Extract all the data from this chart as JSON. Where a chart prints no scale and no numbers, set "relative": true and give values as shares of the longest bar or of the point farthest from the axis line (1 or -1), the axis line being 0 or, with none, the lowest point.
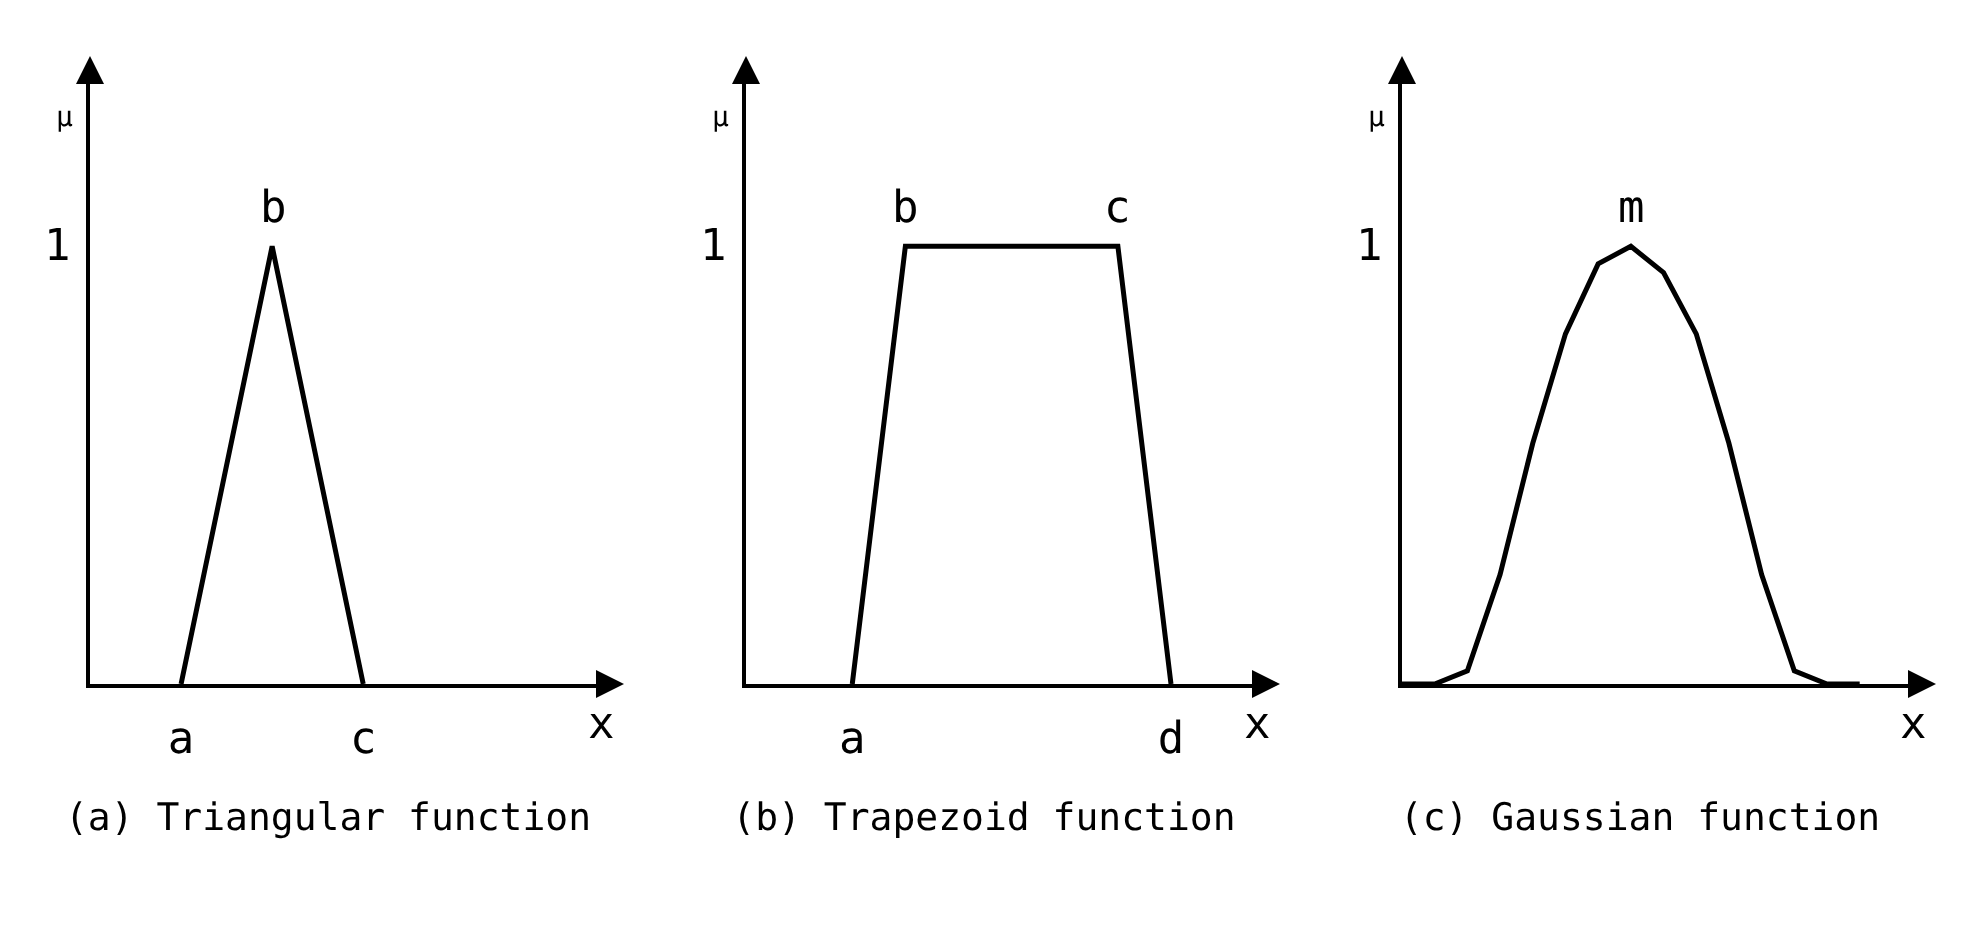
{
  "chart_data": [
    {
      "type": "line",
      "title": "(a) Triangular function",
      "xlabel": "x",
      "ylabel": "μ",
      "relative": true,
      "categories": [
        null,
        "a",
        null,
        "c",
        null,
        null
      ],
      "series": [
        {
          "color": "#000000",
          "values": [
            null,
            0,
            1,
            0,
            null,
            null
          ]
        }
      ],
      "annotations": [
        {
          "text": "b",
          "y": 1
        },
        "1"
      ],
      "grid": false,
      "marker": "none",
      "line_style": "solid"
    },
    {
      "type": "line",
      "title": "(b) Trapezoid function",
      "xlabel": "x",
      "ylabel": "μ",
      "relative": true,
      "categories": [
        null,
        null,
        "a",
        null,
        null,
        null,
        null,
        null,
        "d",
        null
      ],
      "series": [
        {
          "color": "#000000",
          "values": [
            null,
            null,
            0,
            1,
            null,
            null,
            null,
            1,
            0,
            null
          ]
        }
      ],
      "annotations": [
        {
          "text": "b",
          "y": 1
        },
        {
          "text": "c",
          "y": 1
        },
        "1"
      ],
      "grid": false,
      "marker": "none",
      "line_style": "solid"
    },
    {
      "type": "line",
      "title": "(c) Gaussian function",
      "xlabel": "x",
      "ylabel": "μ",
      "relative": true,
      "categories": [
        null,
        null,
        null,
        null,
        null,
        null,
        null,
        null,
        null,
        null,
        null,
        null,
        null,
        null,
        null,
        null
      ],
      "series": [
        {
          "color": "#000000",
          "values": [
            0,
            0,
            0.03,
            0.25,
            0.55,
            0.8,
            0.96,
            1,
            0.94,
            0.8,
            0.55,
            0.25,
            0.03,
            0,
            0,
            null
          ]
        }
      ],
      "annotations": [
        {
          "text": "m",
          "y": 1
        },
        "1"
      ],
      "grid": false,
      "marker": "none",
      "line_style": "solid"
    }
  ]
}
